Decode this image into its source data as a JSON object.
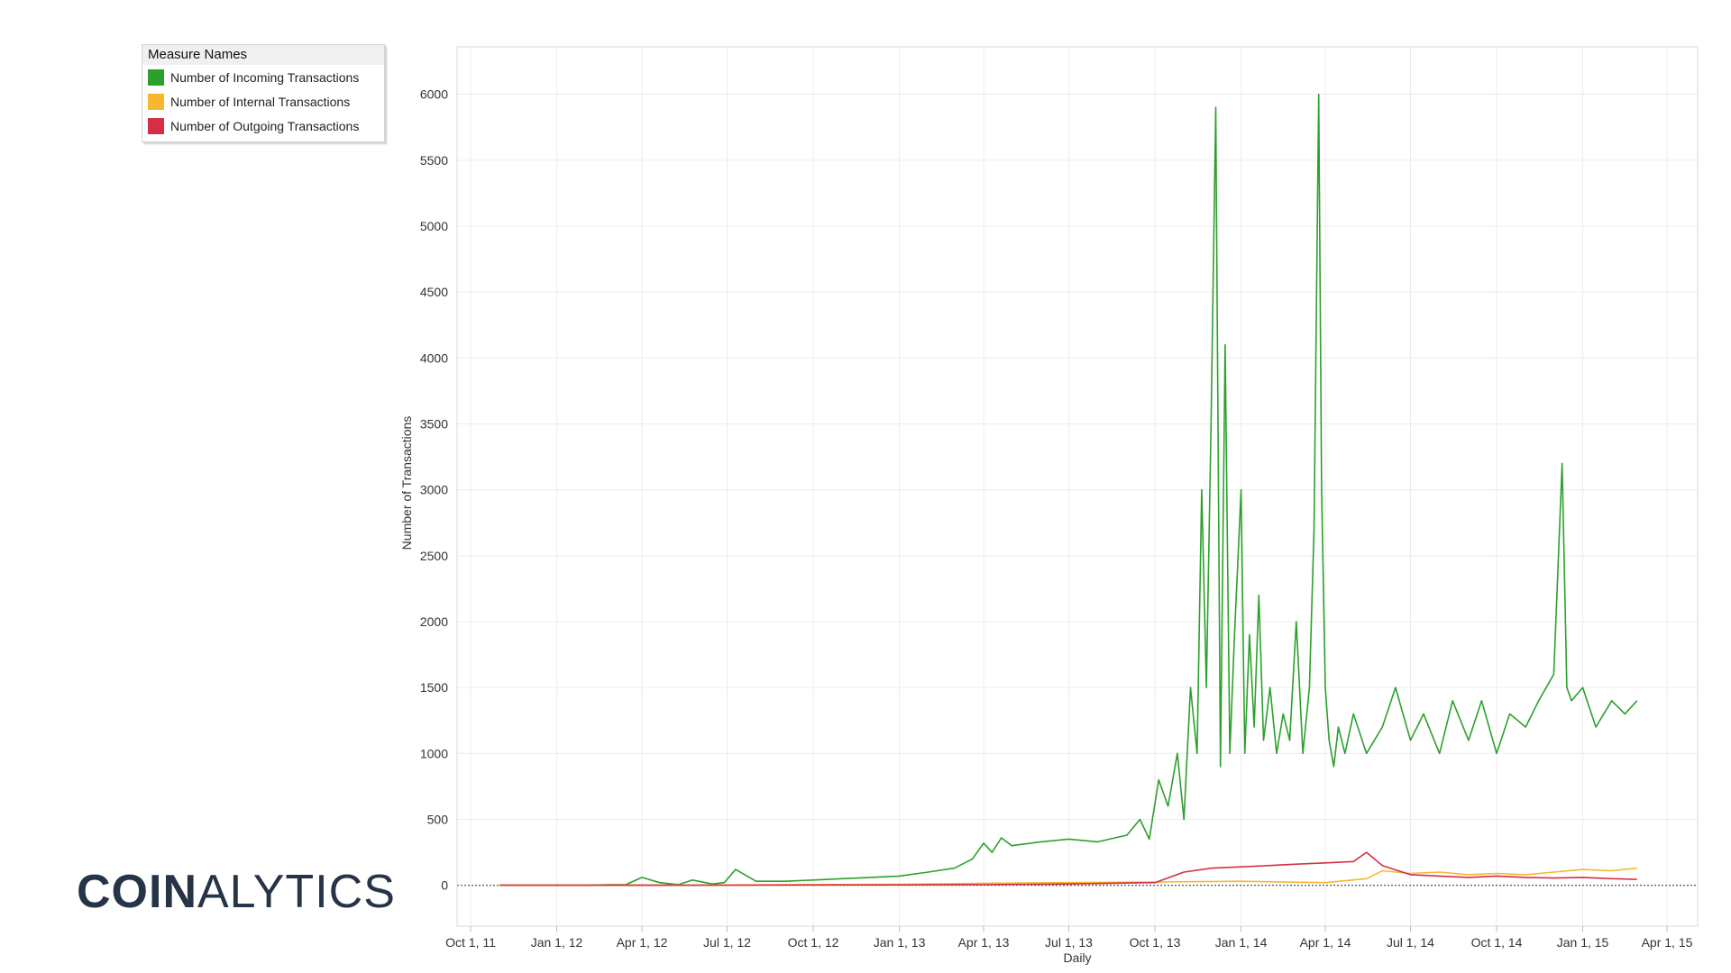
{
  "brand": {
    "part1": "COIN",
    "part2": "ALYTICS"
  },
  "legend": {
    "title": "Measure Names",
    "items": [
      {
        "label": "Number of Incoming Transactions",
        "color": "#2ca02c"
      },
      {
        "label": "Number of Internal Transactions",
        "color": "#f5b82e"
      },
      {
        "label": "Number of Outgoing Transactions",
        "color": "#d62e46"
      }
    ]
  },
  "chart_data": {
    "type": "line",
    "xlabel": "Daily",
    "ylabel": "Number of Transactions",
    "x_ticks": [
      "Oct 1, 11",
      "Jan 1, 12",
      "Apr 1, 12",
      "Jul 1, 12",
      "Oct 1, 12",
      "Jan 1, 13",
      "Apr 1, 13",
      "Jul 1, 13",
      "Oct 1, 13",
      "Jan 1, 14",
      "Apr 1, 14",
      "Jul 1, 14",
      "Oct 1, 14",
      "Jan 1, 15",
      "Apr 1, 15"
    ],
    "y_ticks": [
      0,
      500,
      1000,
      1500,
      2000,
      2500,
      3000,
      3500,
      4000,
      4500,
      5000,
      5500,
      6000
    ],
    "ylim": [
      -310,
      6360
    ],
    "grid": true,
    "legend_position": "top-left",
    "series": [
      {
        "name": "Number of Incoming Transactions",
        "color": "#2ca02c",
        "x": [
          "Nov 1, 11",
          "Dec 1, 11",
          "Jan 1, 12",
          "Feb 1, 12",
          "Mar 1, 12",
          "Mar 15, 12",
          "Apr 1, 12",
          "Apr 20, 12",
          "May 10, 12",
          "May 25, 12",
          "Jun 15, 12",
          "Jun 28, 12",
          "Jul 10, 12",
          "Aug 1, 12",
          "Sep 1, 12",
          "Oct 1, 12",
          "Nov 1, 12",
          "Dec 1, 12",
          "Jan 1, 13",
          "Feb 1, 13",
          "Mar 1, 13",
          "Mar 20, 13",
          "Apr 1, 13",
          "Apr 10, 13",
          "Apr 20, 13",
          "May 1, 13",
          "Jun 1, 13",
          "Jul 1, 13",
          "Aug 1, 13",
          "Sep 1, 13",
          "Sep 15, 13",
          "Sep 25, 13",
          "Oct 5, 13",
          "Oct 15, 13",
          "Oct 25, 13",
          "Nov 1, 13",
          "Nov 8, 13",
          "Nov 15, 13",
          "Nov 20, 13",
          "Nov 25, 13",
          "Nov 30, 13",
          "Dec 5, 13",
          "Dec 10, 13",
          "Dec 15, 13",
          "Dec 20, 13",
          "Dec 25, 13",
          "Jan 1, 14",
          "Jan 5, 14",
          "Jan 10, 14",
          "Jan 15, 14",
          "Jan 20, 14",
          "Jan 25, 14",
          "Feb 1, 14",
          "Feb 8, 14",
          "Feb 15, 14",
          "Feb 22, 14",
          "Mar 1, 14",
          "Mar 8, 14",
          "Mar 15, 14",
          "Mar 20, 14",
          "Mar 25, 14",
          "Mar 28, 14",
          "Apr 1, 14",
          "Apr 5, 14",
          "Apr 10, 14",
          "Apr 15, 14",
          "Apr 22, 14",
          "May 1, 14",
          "May 15, 14",
          "Jun 1, 14",
          "Jun 15, 14",
          "Jul 1, 14",
          "Jul 15, 14",
          "Aug 1, 14",
          "Aug 15, 14",
          "Sep 1, 14",
          "Sep 15, 14",
          "Oct 1, 14",
          "Oct 15, 14",
          "Nov 1, 14",
          "Nov 15, 14",
          "Dec 1, 14",
          "Dec 10, 14",
          "Dec 15, 14",
          "Dec 20, 14",
          "Jan 1, 15",
          "Jan 15, 15",
          "Feb 1, 15",
          "Feb 15, 15",
          "Feb 28, 15"
        ],
        "y": [
          0,
          0,
          0,
          0,
          5,
          5,
          60,
          20,
          5,
          40,
          10,
          20,
          120,
          30,
          30,
          40,
          50,
          60,
          70,
          100,
          130,
          200,
          320,
          250,
          360,
          300,
          330,
          350,
          330,
          380,
          500,
          350,
          800,
          600,
          1000,
          500,
          1500,
          1000,
          3000,
          1500,
          3500,
          5900,
          900,
          4100,
          1000,
          1900,
          3000,
          1000,
          1900,
          1200,
          2200,
          1100,
          1500,
          1000,
          1300,
          1100,
          2000,
          1000,
          1500,
          2700,
          6000,
          3000,
          1500,
          1100,
          900,
          1200,
          1000,
          1300,
          1000,
          1200,
          1500,
          1100,
          1300,
          1000,
          1400,
          1100,
          1400,
          1000,
          1300,
          1200,
          1400,
          1600,
          3200,
          1500,
          1400,
          1500,
          1200,
          1400,
          1300,
          1400
        ]
      },
      {
        "name": "Number of Internal Transactions",
        "color": "#f5b82e",
        "x": [
          "Nov 1, 11",
          "Jan 1, 12",
          "Apr 1, 12",
          "Jul 1, 12",
          "Oct 1, 12",
          "Jan 1, 13",
          "Apr 1, 13",
          "Jul 1, 13",
          "Oct 1, 13",
          "Jan 1, 14",
          "Apr 1, 14",
          "May 15, 14",
          "Jun 1, 14",
          "Jul 1, 14",
          "Aug 1, 14",
          "Sep 1, 14",
          "Oct 1, 14",
          "Nov 1, 14",
          "Dec 1, 14",
          "Jan 1, 15",
          "Feb 1, 15",
          "Feb 28, 15"
        ],
        "y": [
          0,
          0,
          2,
          2,
          5,
          8,
          15,
          20,
          25,
          30,
          20,
          50,
          110,
          90,
          100,
          80,
          90,
          80,
          100,
          120,
          110,
          130
        ]
      },
      {
        "name": "Number of Outgoing Transactions",
        "color": "#d62e46",
        "x": [
          "Nov 1, 11",
          "Jan 1, 12",
          "Apr 1, 12",
          "Jul 1, 12",
          "Oct 1, 12",
          "Jan 1, 13",
          "Apr 1, 13",
          "Jul 1, 13",
          "Oct 1, 13",
          "Nov 1, 13",
          "Dec 1, 13",
          "Jan 1, 14",
          "Feb 1, 14",
          "Mar 1, 14",
          "Apr 1, 14",
          "May 1, 14",
          "May 15, 14",
          "Jun 1, 14",
          "Jul 1, 14",
          "Aug 1, 14",
          "Sep 1, 14",
          "Oct 1, 14",
          "Nov 1, 14",
          "Dec 1, 14",
          "Jan 1, 15",
          "Feb 1, 15",
          "Feb 28, 15"
        ],
        "y": [
          0,
          0,
          0,
          1,
          2,
          3,
          5,
          10,
          20,
          100,
          130,
          140,
          150,
          160,
          170,
          180,
          250,
          150,
          80,
          70,
          60,
          70,
          60,
          55,
          60,
          50,
          45
        ]
      }
    ]
  }
}
